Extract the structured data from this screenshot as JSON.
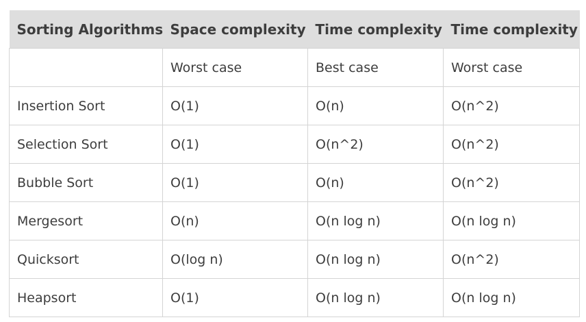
{
  "table": {
    "headers": [
      "Sorting Algorithms",
      "Space complexity",
      "Time complexity",
      "Time complexity"
    ],
    "rows": [
      [
        "",
        "Worst case",
        "Best case",
        "Worst case"
      ],
      [
        "Insertion Sort",
        "O(1)",
        "O(n)",
        "O(n^2)"
      ],
      [
        "Selection Sort",
        "O(1)",
        "O(n^2)",
        "O(n^2)"
      ],
      [
        "Bubble Sort",
        "O(1)",
        "O(n)",
        "O(n^2)"
      ],
      [
        "Mergesort",
        "O(n)",
        "O(n log n)",
        "O(n log n)"
      ],
      [
        "Quicksort",
        "O(log n)",
        "O(n log n)",
        "O(n^2)"
      ],
      [
        "Heapsort",
        "O(1)",
        "O(n log n)",
        "O(n log n)"
      ]
    ]
  }
}
